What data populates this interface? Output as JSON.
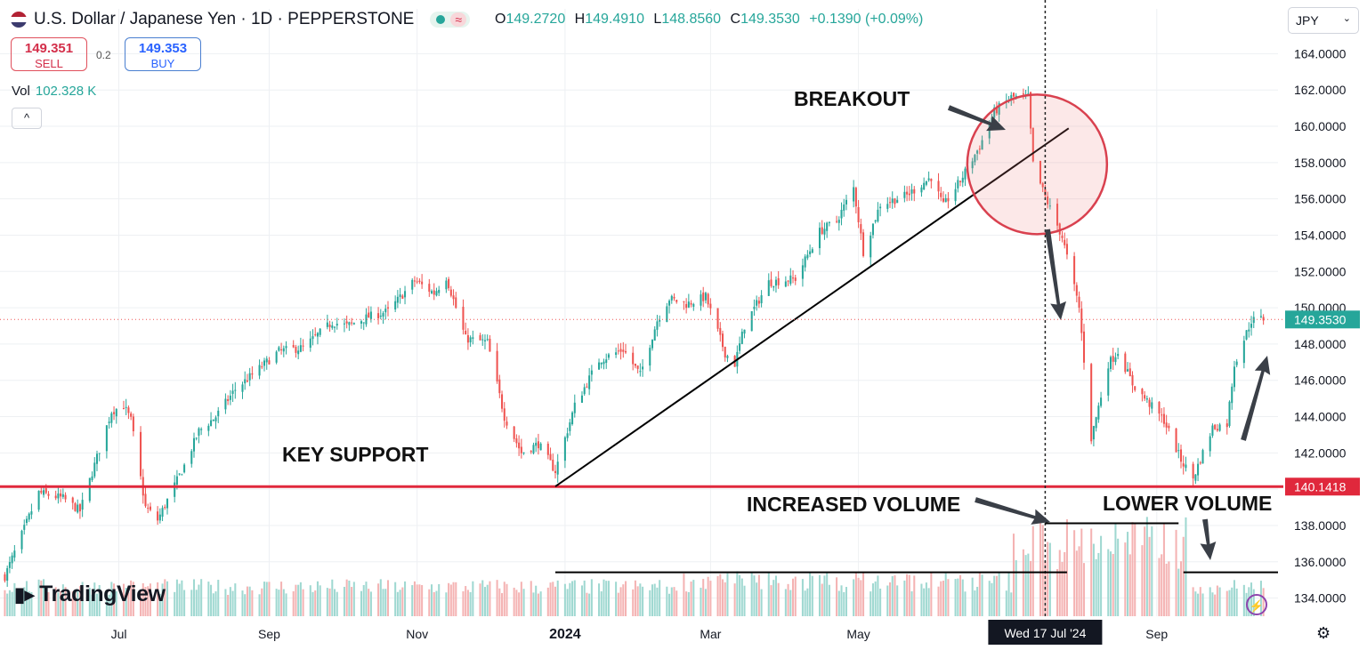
{
  "header": {
    "symbol_title": "U.S. Dollar / Japanese Yen · 1D · PEPPERSTONE",
    "ohlc": {
      "open_label": "O",
      "open": "149.2720",
      "high_label": "H",
      "high": "149.4910",
      "low_label": "L",
      "low": "148.8560",
      "close_label": "C",
      "close": "149.3530",
      "change": "+0.1390 (+0.09%)"
    },
    "flag_icon": "us-flag-icon",
    "status_colors": {
      "live": "#26a69a",
      "wave": "#d32f4a"
    }
  },
  "trade": {
    "sell_price": "149.351",
    "sell_label": "SELL",
    "buy_price": "149.353",
    "buy_label": "BUY",
    "spread": "0.2"
  },
  "volume_legend": {
    "label": "Vol",
    "value": "102.328 K"
  },
  "collapse_label": "^",
  "currency_select": {
    "value": "JPY"
  },
  "logo": {
    "text": "TradingView"
  },
  "chart_data": {
    "type": "candlestick",
    "y_axis": {
      "ylim": [
        133,
        165
      ],
      "ticks": [
        "164.0000",
        "162.0000",
        "160.0000",
        "158.0000",
        "156.0000",
        "154.0000",
        "152.0000",
        "150.0000",
        "148.0000",
        "146.0000",
        "144.0000",
        "142.0000",
        "140.0000",
        "138.0000",
        "136.0000",
        "134.0000"
      ]
    },
    "x_axis": {
      "ticks": [
        {
          "label": "Jul",
          "date": "2023-07-01"
        },
        {
          "label": "Sep",
          "date": "2023-09-01"
        },
        {
          "label": "Nov",
          "date": "2023-11-01"
        },
        {
          "label": "2024",
          "date": "2024-01-01"
        },
        {
          "label": "Mar",
          "date": "2024-03-01"
        },
        {
          "label": "May",
          "date": "2024-05-01"
        },
        {
          "label": "Sep",
          "date": "2024-09-01"
        }
      ],
      "crosshair_label": "Wed 17 Jul '24",
      "crosshair_date": "2024-07-17"
    },
    "last_price": "149.3530",
    "key_support_price": "140.1418",
    "key_support_value": 140.1418,
    "colors": {
      "up": "#26a69a",
      "down": "#ef5350",
      "support": "#e0283c",
      "annotation": "#111111"
    },
    "close_path": [
      [
        "2023-05-15",
        135.2
      ],
      [
        "2023-05-29",
        139.8
      ],
      [
        "2023-06-08",
        139.5
      ],
      [
        "2023-06-15",
        138.8
      ],
      [
        "2023-06-28",
        144.3
      ],
      [
        "2023-07-03",
        144.6
      ],
      [
        "2023-07-06",
        143.8
      ],
      [
        "2023-07-12",
        139.0
      ],
      [
        "2023-07-17",
        138.3
      ],
      [
        "2023-07-28",
        141.3
      ],
      [
        "2023-08-03",
        143.2
      ],
      [
        "2023-08-10",
        144.0
      ],
      [
        "2023-08-18",
        145.5
      ],
      [
        "2023-08-25",
        146.3
      ],
      [
        "2023-09-05",
        147.6
      ],
      [
        "2023-09-15",
        147.8
      ],
      [
        "2023-09-27",
        149.2
      ],
      [
        "2023-10-03",
        149.0
      ],
      [
        "2023-10-12",
        149.5
      ],
      [
        "2023-10-20",
        149.8
      ],
      [
        "2023-10-31",
        151.5
      ],
      [
        "2023-11-08",
        150.8
      ],
      [
        "2023-11-13",
        151.7
      ],
      [
        "2023-11-21",
        148.3
      ],
      [
        "2023-11-30",
        148.1
      ],
      [
        "2023-12-07",
        144.0
      ],
      [
        "2023-12-14",
        142.0
      ],
      [
        "2023-12-21",
        142.5
      ],
      [
        "2023-12-28",
        141.0
      ],
      [
        "2024-01-05",
        144.6
      ],
      [
        "2024-01-15",
        147.1
      ],
      [
        "2024-01-25",
        147.7
      ],
      [
        "2024-02-01",
        146.3
      ],
      [
        "2024-02-08",
        149.3
      ],
      [
        "2024-02-13",
        150.5
      ],
      [
        "2024-02-20",
        150.2
      ],
      [
        "2024-02-28",
        150.6
      ],
      [
        "2024-03-07",
        147.5
      ],
      [
        "2024-03-11",
        146.9
      ],
      [
        "2024-03-15",
        149.0
      ],
      [
        "2024-03-25",
        151.4
      ],
      [
        "2024-04-05",
        151.6
      ],
      [
        "2024-04-15",
        154.2
      ],
      [
        "2024-04-22",
        154.8
      ],
      [
        "2024-04-29",
        156.6
      ],
      [
        "2024-05-03",
        153.1
      ],
      [
        "2024-05-10",
        155.7
      ],
      [
        "2024-05-21",
        156.2
      ],
      [
        "2024-05-31",
        157.2
      ],
      [
        "2024-06-05",
        155.6
      ],
      [
        "2024-06-12",
        157.0
      ],
      [
        "2024-06-20",
        158.9
      ],
      [
        "2024-06-26",
        160.8
      ],
      [
        "2024-07-03",
        161.6
      ],
      [
        "2024-07-10",
        161.6
      ],
      [
        "2024-07-12",
        157.9
      ],
      [
        "2024-07-17",
        156.1
      ],
      [
        "2024-07-24",
        153.9
      ],
      [
        "2024-07-31",
        150.0
      ],
      [
        "2024-08-05",
        142.8
      ],
      [
        "2024-08-12",
        146.9
      ],
      [
        "2024-08-16",
        147.6
      ],
      [
        "2024-08-22",
        145.8
      ],
      [
        "2024-08-29",
        144.7
      ],
      [
        "2024-09-04",
        143.8
      ],
      [
        "2024-09-11",
        141.6
      ],
      [
        "2024-09-16",
        140.6
      ],
      [
        "2024-09-24",
        143.4
      ],
      [
        "2024-09-30",
        143.6
      ],
      [
        "2024-10-03",
        146.9
      ],
      [
        "2024-10-10",
        149.3
      ],
      [
        "2024-10-15",
        149.4
      ]
    ],
    "annotations": {
      "breakout": "BREAKOUT",
      "key_support": "KEY SUPPORT",
      "increased_volume": "INCREASED VOLUME",
      "lower_volume": "LOWER VOLUME"
    },
    "trendline": {
      "from": [
        "2023-12-28",
        140.15
      ],
      "to": [
        "2024-07-12",
        159.3
      ]
    },
    "breakout_circle": {
      "center": [
        "2024-07-10",
        158.0
      ],
      "radius_days": 20
    },
    "volume_levels": [
      {
        "from": "2023-12-28",
        "to": "2024-07-26",
        "value": 0.26
      },
      {
        "from": "2024-07-17",
        "to": "2024-09-10",
        "value": 0.55
      },
      {
        "from": "2024-09-12",
        "to": "2024-10-21",
        "value": 0.26
      }
    ]
  }
}
